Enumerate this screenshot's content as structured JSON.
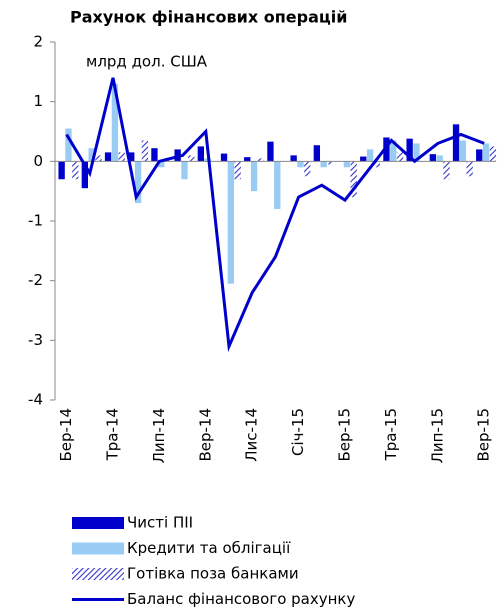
{
  "chart_data": {
    "type": "bar",
    "title": "Рахунок фінансових операцій",
    "annotation": "млрд дол. США",
    "categories": [
      "Бер-14",
      null,
      "Тра-14",
      null,
      "Лип-14",
      null,
      "Вер-14",
      null,
      "Лис-14",
      null,
      "Січ-15",
      null,
      "Бер-15",
      null,
      "Тра-15",
      null,
      "Лип-15",
      null,
      "Вер-15"
    ],
    "series": [
      {
        "name": "Чисті ПІІ",
        "type": "bar",
        "color": "#0000cc",
        "values": [
          -0.3,
          -0.45,
          0.15,
          0.15,
          0.22,
          0.2,
          0.25,
          0.13,
          0.07,
          0.33,
          0.1,
          0.27,
          0.0,
          0.08,
          0.4,
          0.38,
          0.12,
          0.62,
          0.2
        ]
      },
      {
        "name": "Кредити та облігації",
        "type": "bar",
        "color": "#99ccf5",
        "values": [
          0.55,
          0.22,
          1.3,
          -0.7,
          -0.1,
          -0.3,
          0.05,
          -2.05,
          -0.5,
          -0.8,
          -0.1,
          -0.1,
          -0.1,
          0.2,
          0.35,
          0.3,
          0.1,
          0.35,
          0.3
        ]
      },
      {
        "name": "Готівка поза банками",
        "type": "hatched",
        "color": "#3333cc",
        "values": [
          -0.3,
          0.1,
          0.15,
          0.35,
          0.05,
          0.1,
          0.0,
          -0.3,
          0.05,
          0.0,
          -0.25,
          -0.05,
          -0.6,
          -0.1,
          0.15,
          0.0,
          -0.3,
          -0.25,
          0.25
        ]
      },
      {
        "name": "Баланс фінансового рахунку",
        "type": "line",
        "color": "#0000cc",
        "values": [
          0.45,
          -0.2,
          1.4,
          -0.6,
          0.0,
          0.1,
          0.5,
          -3.1,
          -2.2,
          -1.6,
          -0.6,
          -0.4,
          -0.65,
          -0.15,
          0.35,
          0.0,
          0.3,
          0.45,
          0.3
        ]
      }
    ],
    "ylim": [
      -4,
      2
    ],
    "yticks": [
      -4,
      -3,
      -2,
      -1,
      0,
      1,
      2
    ]
  }
}
